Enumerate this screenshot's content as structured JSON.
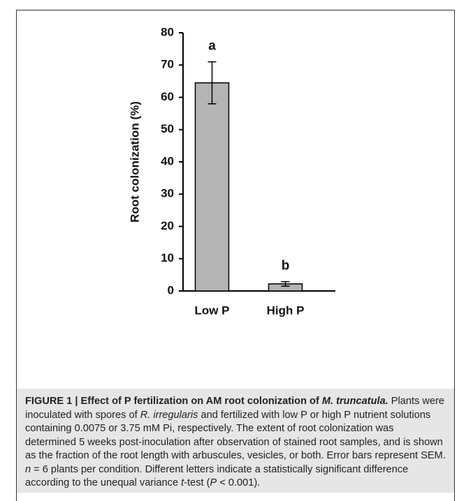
{
  "chart_data": {
    "type": "bar",
    "ylabel": "Root colonization (%)",
    "categories": [
      "Low P",
      "High P"
    ],
    "values": [
      64.5,
      2.2
    ],
    "errors": [
      6.5,
      0.7
    ],
    "annotations": [
      "a",
      "b"
    ],
    "color": "#b4b4b4",
    "ylim": [
      0,
      80
    ],
    "yticks": [
      0,
      10,
      20,
      30,
      40,
      50,
      60,
      70,
      80
    ],
    "grid": false
  },
  "caption": {
    "runs": [
      "FIGURE 1 | Effect of P fertilization on AM root colonization of ",
      "M. truncatula.",
      " Plants were inoculated with spores of ",
      "R. irregularis",
      " and fertilized with low P or high P nutrient solutions containing 0.0075 or 3.75 mM Pi, respectively. The extent of root colonization was determined 5 weeks post-inoculation after observation of stained root samples, and is shown as the fraction of the root length with arbuscules, vesicles, or both. Error bars represent SEM. ",
      "n",
      " = 6 plants per condition. Different letters indicate a statistically significant difference according to the unequal variance ",
      "t",
      "-test (",
      "P",
      " < 0.001)."
    ]
  }
}
